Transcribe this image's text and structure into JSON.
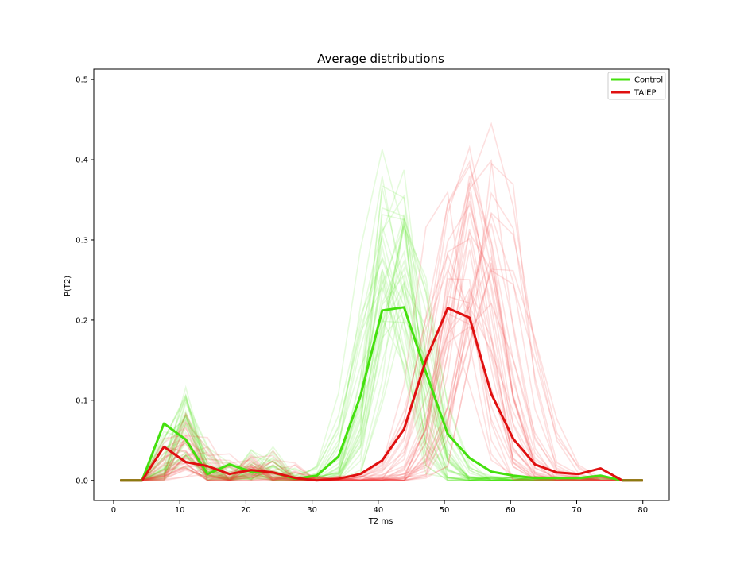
{
  "chart_data": {
    "type": "line",
    "title": "Average distributions",
    "xlabel": "T2 ms",
    "ylabel": "P(T2)",
    "xlim": [
      -3,
      84
    ],
    "ylim": [
      -0.025,
      0.513
    ],
    "xticks": [
      0,
      10,
      20,
      30,
      40,
      50,
      60,
      70,
      80
    ],
    "yticks": [
      0.0,
      0.1,
      0.2,
      0.3,
      0.4,
      0.5
    ],
    "xtick_labels": [
      "0",
      "10",
      "20",
      "30",
      "40",
      "50",
      "60",
      "70",
      "80"
    ],
    "ytick_labels": [
      "0.0",
      "0.1",
      "0.2",
      "0.3",
      "0.4",
      "0.5"
    ],
    "grid": false,
    "legend_position": "top-right",
    "x": [
      1,
      4.3,
      7.6,
      10.9,
      14.2,
      17.5,
      20.8,
      24.1,
      27.4,
      30.7,
      34,
      37.3,
      40.6,
      43.9,
      47.2,
      50.5,
      53.8,
      57.1,
      60.4,
      63.7,
      67,
      70.3,
      73.6,
      76.9,
      80
    ],
    "series": [
      {
        "name": "Control",
        "color": "#44e00e",
        "values": [
          0,
          0,
          0.071,
          0.051,
          0.008,
          0.02,
          0.011,
          0.01,
          0.002,
          0.006,
          0.03,
          0.105,
          0.212,
          0.216,
          0.135,
          0.058,
          0.028,
          0.011,
          0.006,
          0.003,
          0.003,
          0.003,
          0.006,
          0,
          0
        ]
      },
      {
        "name": "TAIEP",
        "color": "#e01010",
        "values": [
          0,
          0,
          0.042,
          0.023,
          0.018,
          0.008,
          0.013,
          0.01,
          0.003,
          0,
          0.002,
          0.008,
          0.025,
          0.064,
          0.15,
          0.215,
          0.203,
          0.108,
          0.052,
          0.02,
          0.01,
          0.008,
          0.015,
          0,
          0
        ]
      }
    ],
    "background_traces_note_colors": {
      "control_light": "#44e00e",
      "taiep_light": "#f04040"
    }
  }
}
